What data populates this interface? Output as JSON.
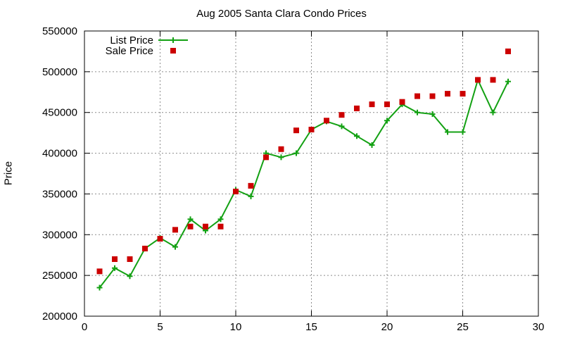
{
  "chart_data": {
    "type": "line",
    "title": "Aug 2005 Santa Clara Condo Prices",
    "xlabel": "",
    "ylabel": "Price",
    "xlim": [
      0,
      30
    ],
    "ylim": [
      200000,
      550000
    ],
    "xticks": [
      0,
      5,
      10,
      15,
      20,
      25,
      30
    ],
    "yticks": [
      200000,
      250000,
      300000,
      350000,
      400000,
      450000,
      500000,
      550000
    ],
    "grid": true,
    "legend_position": "top-left",
    "series": [
      {
        "name": "List Price",
        "style": "line+cross",
        "color": "#13a113",
        "x": [
          1,
          2,
          3,
          4,
          5,
          6,
          7,
          8,
          9,
          10,
          11,
          12,
          13,
          14,
          15,
          16,
          17,
          18,
          19,
          20,
          21,
          22,
          23,
          24,
          25,
          26,
          27,
          28
        ],
        "y": [
          235000,
          259000,
          249000,
          283000,
          296000,
          285000,
          319000,
          305000,
          319000,
          355000,
          347000,
          400000,
          395000,
          400000,
          429000,
          439000,
          433000,
          421000,
          410000,
          440000,
          460000,
          450000,
          448000,
          426000,
          426000,
          490000,
          450000,
          488000
        ]
      },
      {
        "name": "Sale Price",
        "style": "square",
        "color": "#cc0000",
        "x": [
          1,
          2,
          3,
          4,
          5,
          6,
          7,
          8,
          9,
          10,
          11,
          12,
          13,
          14,
          15,
          16,
          17,
          18,
          19,
          20,
          21,
          22,
          23,
          24,
          25,
          26,
          27,
          28
        ],
        "y": [
          255000,
          270000,
          270000,
          283000,
          295000,
          306000,
          310000,
          310000,
          310000,
          353000,
          360000,
          395000,
          405000,
          428000,
          429000,
          440000,
          447000,
          455000,
          460000,
          460000,
          463000,
          470000,
          470000,
          473000,
          473000,
          490000,
          490000,
          525000
        ]
      }
    ]
  }
}
